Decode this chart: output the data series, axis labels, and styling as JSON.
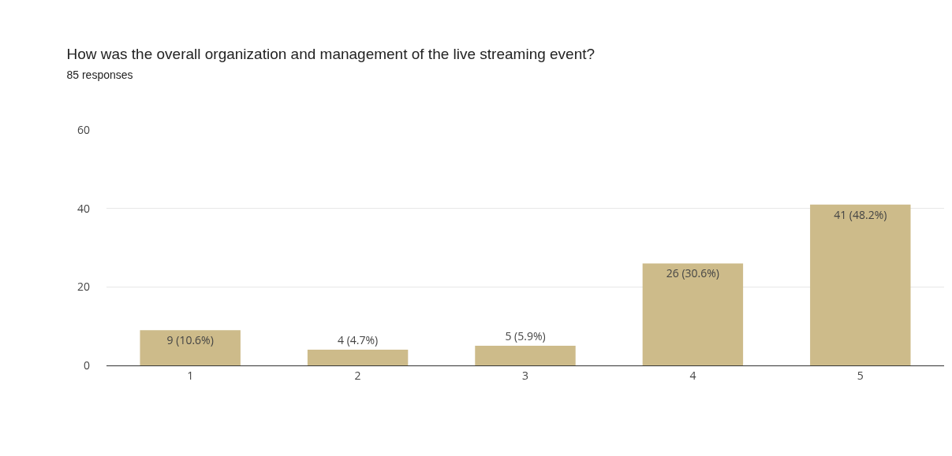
{
  "chart_data": {
    "type": "bar",
    "title": "How was the overall organization and management of the live streaming event?",
    "subtitle": "85 responses",
    "categories": [
      "1",
      "2",
      "3",
      "4",
      "5"
    ],
    "values": [
      9,
      4,
      5,
      26,
      41
    ],
    "value_labels": [
      "9 (10.6%)",
      "4 (4.7%)",
      "5 (5.9%)",
      "26 (30.6%)",
      "41 (48.2%)"
    ],
    "color": "#cdbb8a",
    "ylim": [
      0,
      60
    ],
    "yticks": [
      0,
      20,
      40,
      60
    ],
    "grid": "y",
    "legend": false
  }
}
